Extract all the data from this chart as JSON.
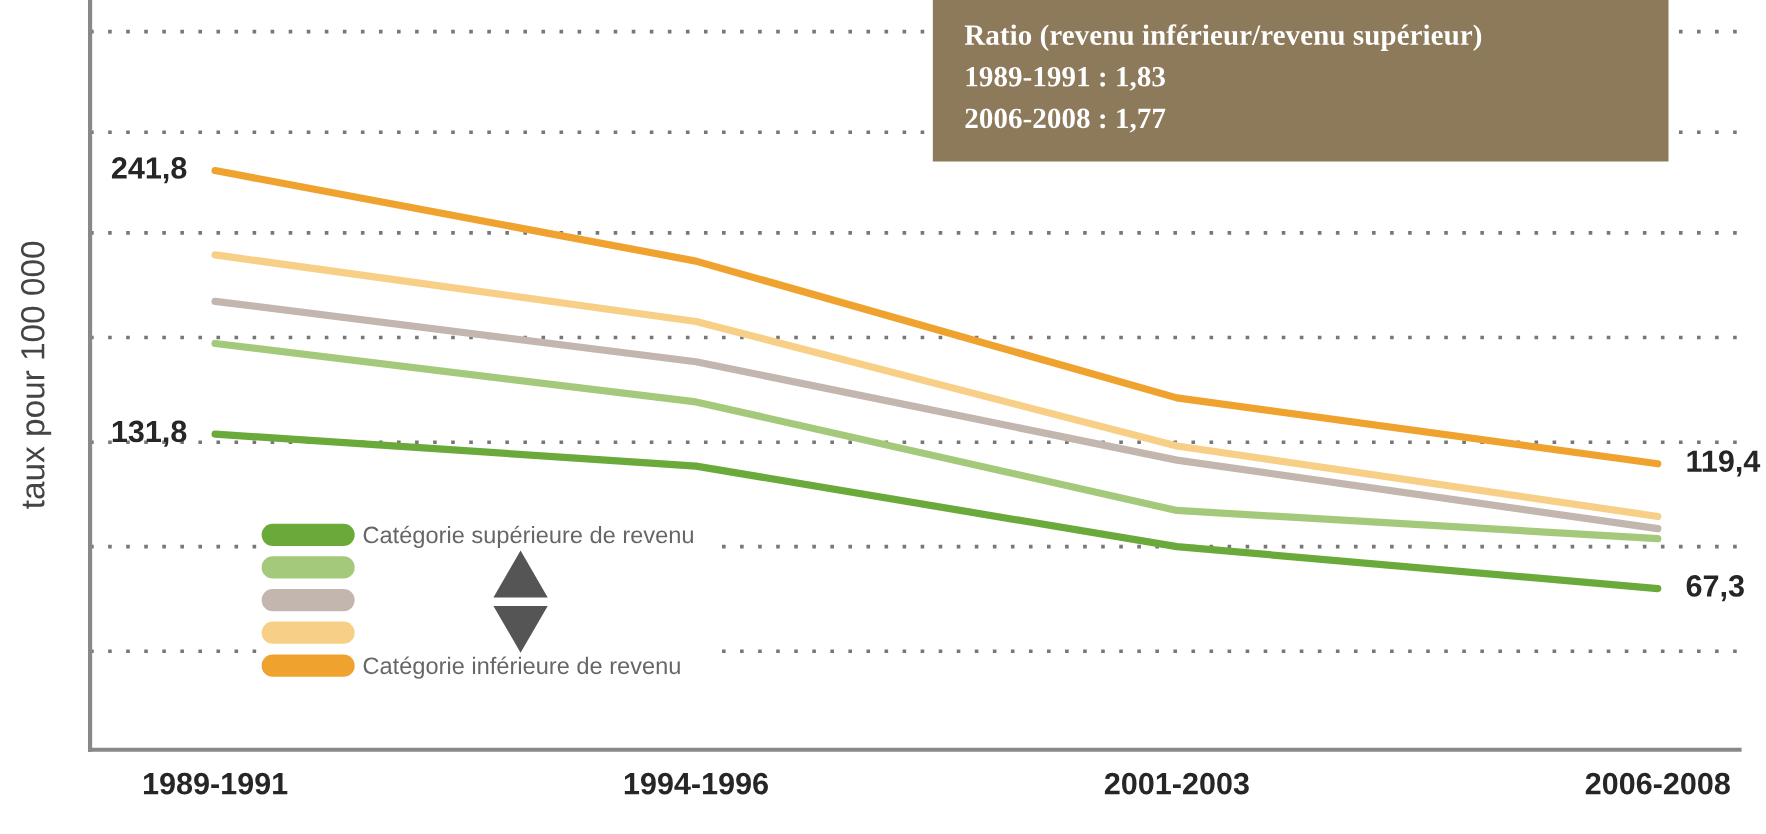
{
  "chart_data": {
    "type": "line",
    "ylabel": "taux pour 100 000",
    "categories": [
      "1989-1991",
      "1994-1996",
      "2001-2003",
      "2006-2008"
    ],
    "series": [
      {
        "name": "Catégorie supérieure de revenu",
        "color": "#6aaa3a",
        "values": [
          131.8,
          118.4,
          84.8,
          67.3
        ],
        "value_labels": [
          "131,8",
          null,
          null,
          "67,3"
        ]
      },
      {
        "color": "#a5c97a",
        "values": [
          169.6,
          145.2,
          99.9,
          88.1
        ]
      },
      {
        "color": "#c2b6ae",
        "values": [
          187.2,
          162.0,
          120.9,
          92.3
        ]
      },
      {
        "color": "#f8cf86",
        "values": [
          206.6,
          178.8,
          126.8,
          97.4
        ]
      },
      {
        "name": "Catégorie inférieure de revenu",
        "color": "#f0a22e",
        "values": [
          241.8,
          204.0,
          146.9,
          119.4
        ],
        "value_labels": [
          "241,8",
          null,
          null,
          "119,4"
        ]
      }
    ],
    "ylim": [
      0,
      313
    ],
    "yticks": [
      {
        "value": 41.1,
        "label": null
      },
      {
        "value": 84.8,
        "label": null
      },
      {
        "value": 128.4,
        "label": null
      },
      {
        "value": 172.1,
        "label": null
      },
      {
        "value": 215.8,
        "label": null
      },
      {
        "value": 257.8,
        "label": null
      },
      {
        "value": 299.8,
        "label": null
      }
    ],
    "tick_labels": "x",
    "grid": "y",
    "legend": "bottom left",
    "marker": "none",
    "line_style": "solid",
    "annotations": [
      "Ratio (revenu inférieur/revenu supérieur)",
      "1989-1991 : 1,83",
      "2006-2008 : 1,77"
    ]
  }
}
